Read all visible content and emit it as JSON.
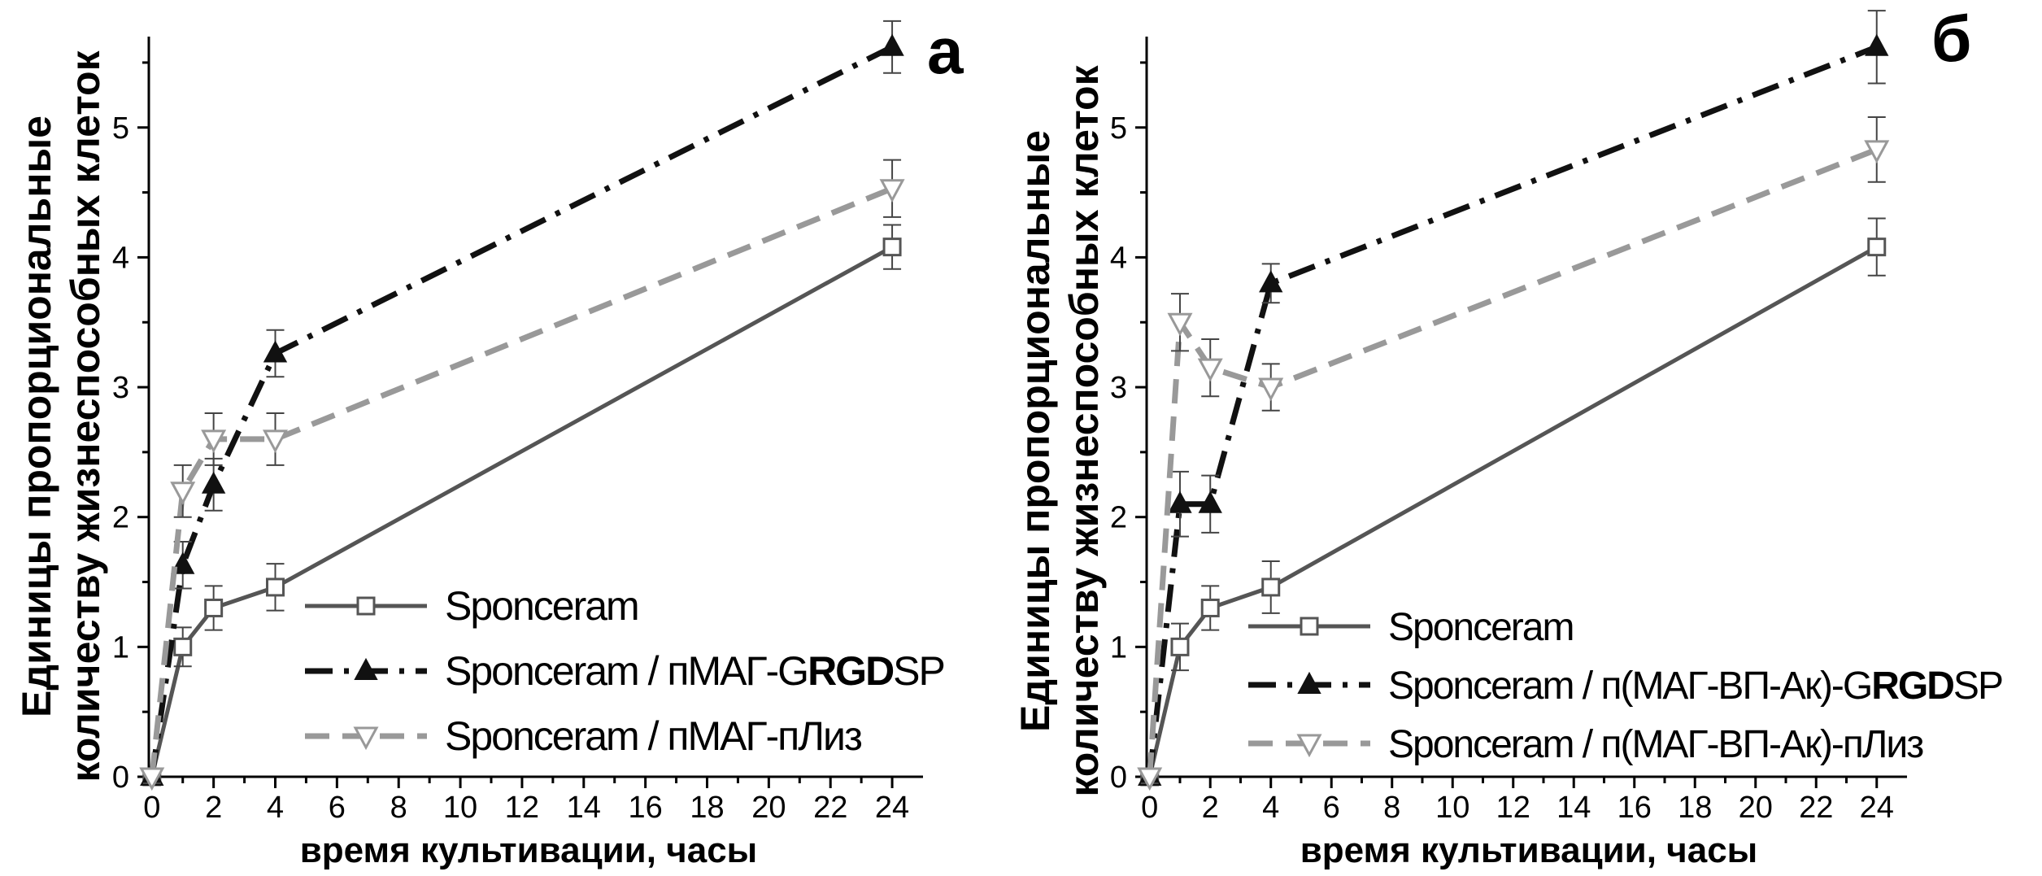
{
  "chart_data": [
    {
      "type": "line",
      "panel_label": "а",
      "xlabel": "время культивации, часы",
      "ylabel_line1": "Единицы пропорциональные",
      "ylabel_line2": "количеству  жизнеспособных клеток",
      "x": [
        0,
        1,
        2,
        4,
        24
      ],
      "xticks": [
        0,
        2,
        4,
        6,
        8,
        10,
        12,
        14,
        16,
        18,
        20,
        22,
        24
      ],
      "yticks": [
        0,
        1,
        2,
        3,
        4,
        5
      ],
      "xlim": [
        -0.1,
        25
      ],
      "ylim": [
        0,
        5.7
      ],
      "grid": false,
      "legend_position": "bottom-right",
      "series": [
        {
          "name": "Sponceram",
          "name_parts": [
            {
              "text": "Sponceram",
              "bold": false
            }
          ],
          "values": [
            0,
            1.0,
            1.3,
            1.46,
            4.08
          ],
          "errors": [
            0.05,
            0.15,
            0.17,
            0.18,
            0.17
          ],
          "color": "#555555",
          "dash": "solid",
          "marker": "square-open"
        },
        {
          "name": "Sponceram / пМАГ-GRGDSP",
          "name_parts": [
            {
              "text": "Sponceram / пМАГ-G",
              "bold": false
            },
            {
              "text": "RGD",
              "bold": true
            },
            {
              "text": "SP",
              "bold": false
            }
          ],
          "values": [
            0,
            1.63,
            2.25,
            3.26,
            5.62
          ],
          "errors": [
            0.05,
            0.18,
            0.2,
            0.18,
            0.2
          ],
          "color": "#111111",
          "dash": "dashdot",
          "marker": "triangle-up-filled"
        },
        {
          "name": "Sponceram / пМАГ-пЛиз",
          "name_parts": [
            {
              "text": "Sponceram / пМАГ-пЛиз",
              "bold": false
            }
          ],
          "values": [
            0,
            2.2,
            2.6,
            2.6,
            4.53
          ],
          "errors": [
            0.05,
            0.2,
            0.2,
            0.2,
            0.22
          ],
          "color": "#999999",
          "dash": "dash",
          "marker": "triangle-down-open"
        }
      ]
    },
    {
      "type": "line",
      "panel_label": "б",
      "xlabel": "время культивации, часы",
      "ylabel_line1": "Единицы пропорциональные",
      "ylabel_line2": "количеству  жизнеспособных клеток",
      "x": [
        0,
        1,
        2,
        4,
        24
      ],
      "xticks": [
        0,
        2,
        4,
        6,
        8,
        10,
        12,
        14,
        16,
        18,
        20,
        22,
        24
      ],
      "yticks": [
        0,
        1,
        2,
        3,
        4,
        5
      ],
      "xlim": [
        -0.1,
        25
      ],
      "ylim": [
        0,
        5.7
      ],
      "grid": false,
      "legend_position": "bottom-right",
      "series": [
        {
          "name": "Sponceram",
          "name_parts": [
            {
              "text": "Sponceram",
              "bold": false
            }
          ],
          "values": [
            0,
            1.0,
            1.3,
            1.46,
            4.08
          ],
          "errors": [
            0.05,
            0.18,
            0.17,
            0.2,
            0.22
          ],
          "color": "#555555",
          "dash": "solid",
          "marker": "square-open"
        },
        {
          "name": "Sponceram / п(МАГ-ВП-Ак)-GRGDSP",
          "name_parts": [
            {
              "text": "Sponceram / п(МАГ-ВП-Ак)-G",
              "bold": false
            },
            {
              "text": "RGD",
              "bold": true
            },
            {
              "text": "SP",
              "bold": false
            }
          ],
          "values": [
            0,
            2.1,
            2.1,
            3.8,
            5.62
          ],
          "errors": [
            0.05,
            0.25,
            0.22,
            0.15,
            0.28
          ],
          "color": "#111111",
          "dash": "dashdot",
          "marker": "triangle-up-filled"
        },
        {
          "name": "Sponceram / п(МАГ-ВП-Ак)-пЛиз",
          "name_parts": [
            {
              "text": "Sponceram / п(МАГ-ВП-Ак)-пЛиз",
              "bold": false
            }
          ],
          "values": [
            0,
            3.5,
            3.15,
            3.0,
            4.83
          ],
          "errors": [
            0.05,
            0.22,
            0.22,
            0.18,
            0.25
          ],
          "color": "#999999",
          "dash": "dash",
          "marker": "triangle-down-open"
        }
      ]
    }
  ]
}
